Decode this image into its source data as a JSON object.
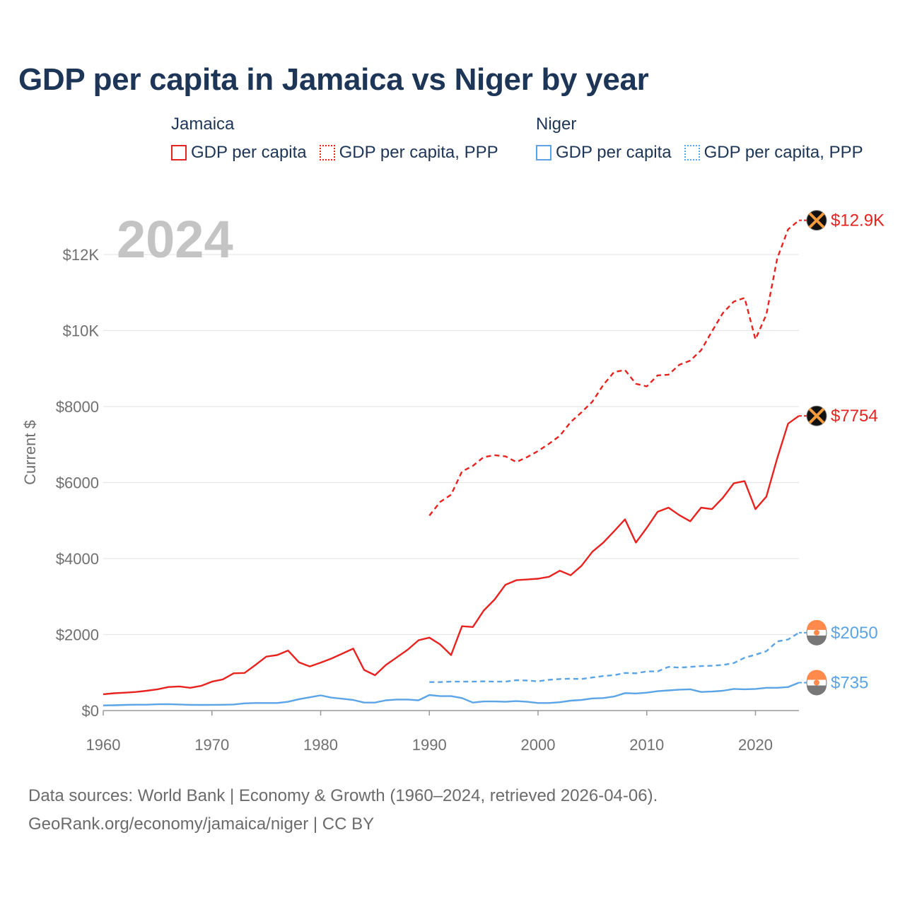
{
  "title": "GDP per capita in Jamaica vs Niger by year",
  "legend": {
    "groups": [
      {
        "name": "Jamaica",
        "color": "#e8231f",
        "items": [
          {
            "label": "GDP per capita",
            "style": "solid"
          },
          {
            "label": "GDP per capita, PPP",
            "style": "dotted"
          }
        ]
      },
      {
        "name": "Niger",
        "color": "#5ba4e6",
        "items": [
          {
            "label": "GDP per capita",
            "style": "solid"
          },
          {
            "label": "GDP per capita, PPP",
            "style": "dotted"
          }
        ]
      }
    ]
  },
  "current_year": "2024",
  "footer": {
    "line1": "Data sources: World Bank | Economy & Growth (1960–2024, retrieved 2026-04-06).",
    "line2": "GeoRank.org/economy/jamaica/niger | CC BY"
  },
  "chart_data": {
    "type": "line",
    "title": "GDP per capita in Jamaica vs Niger by year",
    "xlabel": "",
    "ylabel": "Current $",
    "xlim": [
      1960,
      2025
    ],
    "ylim": [
      0,
      13000
    ],
    "x_ticks": [
      1960,
      1970,
      1980,
      1990,
      2000,
      2010,
      2020
    ],
    "x_tick_labels": [
      "1960",
      "1970",
      "1980",
      "1990",
      "2000",
      "2010",
      "2020"
    ],
    "y_ticks": [
      0,
      2000,
      4000,
      6000,
      8000,
      10000,
      12000
    ],
    "y_tick_labels": [
      "$0",
      "$2000",
      "$4000",
      "$6000",
      "$8000",
      "$10K",
      "$12K"
    ],
    "grid": true,
    "series": [
      {
        "name": "Jamaica GDP per capita",
        "color": "#e8231f",
        "style": "solid",
        "end_label": "$7754",
        "x": [
          1960,
          1961,
          1962,
          1963,
          1964,
          1965,
          1966,
          1967,
          1968,
          1969,
          1970,
          1971,
          1972,
          1973,
          1974,
          1975,
          1976,
          1977,
          1978,
          1979,
          1980,
          1981,
          1982,
          1983,
          1984,
          1985,
          1986,
          1987,
          1988,
          1989,
          1990,
          1991,
          1992,
          1993,
          1994,
          1995,
          1996,
          1997,
          1998,
          1999,
          2000,
          2001,
          2002,
          2003,
          2004,
          2005,
          2006,
          2007,
          2008,
          2009,
          2010,
          2011,
          2012,
          2013,
          2014,
          2015,
          2016,
          2017,
          2018,
          2019,
          2020,
          2021,
          2022,
          2023,
          2024
        ],
        "values": [
          430,
          455,
          470,
          490,
          520,
          560,
          620,
          635,
          600,
          650,
          760,
          820,
          980,
          990,
          1200,
          1420,
          1460,
          1580,
          1270,
          1160,
          1260,
          1370,
          1500,
          1630,
          1070,
          930,
          1200,
          1400,
          1600,
          1850,
          1920,
          1740,
          1460,
          2220,
          2200,
          2630,
          2920,
          3310,
          3430,
          3450,
          3470,
          3520,
          3680,
          3560,
          3810,
          4180,
          4420,
          4720,
          5030,
          4420,
          4810,
          5230,
          5340,
          5140,
          4980,
          5340,
          5300,
          5600,
          5980,
          6040,
          5300,
          5630,
          6640,
          7550,
          7754
        ]
      },
      {
        "name": "Jamaica GDP per capita, PPP",
        "color": "#e8231f",
        "style": "dashed",
        "end_label": "$12.9K",
        "x": [
          1990,
          1991,
          1992,
          1993,
          1994,
          1995,
          1996,
          1997,
          1998,
          1999,
          2000,
          2001,
          2002,
          2003,
          2004,
          2005,
          2006,
          2007,
          2008,
          2009,
          2010,
          2011,
          2012,
          2013,
          2014,
          2015,
          2016,
          2017,
          2018,
          2019,
          2020,
          2021,
          2022,
          2023,
          2024
        ],
        "values": [
          5130,
          5490,
          5680,
          6290,
          6440,
          6670,
          6720,
          6690,
          6540,
          6670,
          6830,
          7020,
          7230,
          7590,
          7850,
          8130,
          8570,
          8910,
          8960,
          8600,
          8530,
          8820,
          8840,
          9100,
          9210,
          9480,
          9980,
          10460,
          10760,
          10860,
          9770,
          10420,
          11900,
          12660,
          12900
        ]
      },
      {
        "name": "Niger GDP per capita",
        "color": "#5ba4e6",
        "style": "solid",
        "end_label": "$735",
        "x": [
          1960,
          1961,
          1962,
          1963,
          1964,
          1965,
          1966,
          1967,
          1968,
          1969,
          1970,
          1971,
          1972,
          1973,
          1974,
          1975,
          1976,
          1977,
          1978,
          1979,
          1980,
          1981,
          1982,
          1983,
          1984,
          1985,
          1986,
          1987,
          1988,
          1989,
          1990,
          1991,
          1992,
          1993,
          1994,
          1995,
          1996,
          1997,
          1998,
          1999,
          2000,
          2001,
          2002,
          2003,
          2004,
          2005,
          2006,
          2007,
          2008,
          2009,
          2010,
          2011,
          2012,
          2013,
          2014,
          2015,
          2016,
          2017,
          2018,
          2019,
          2020,
          2021,
          2022,
          2023,
          2024
        ],
        "values": [
          135,
          140,
          148,
          155,
          155,
          165,
          170,
          160,
          150,
          148,
          150,
          153,
          160,
          190,
          200,
          200,
          200,
          230,
          300,
          350,
          400,
          340,
          310,
          280,
          210,
          210,
          270,
          290,
          290,
          270,
          410,
          380,
          380,
          330,
          210,
          240,
          240,
          230,
          250,
          230,
          200,
          200,
          220,
          260,
          280,
          320,
          330,
          370,
          460,
          450,
          470,
          510,
          530,
          550,
          560,
          490,
          500,
          520,
          570,
          560,
          570,
          600,
          600,
          620,
          735
        ]
      },
      {
        "name": "Niger GDP per capita, PPP",
        "color": "#5ba4e6",
        "style": "dashed",
        "end_label": "$2050",
        "x": [
          1990,
          1991,
          1992,
          1993,
          1994,
          1995,
          1996,
          1997,
          1998,
          1999,
          2000,
          2001,
          2002,
          2003,
          2004,
          2005,
          2006,
          2007,
          2008,
          2009,
          2010,
          2011,
          2012,
          2013,
          2014,
          2015,
          2016,
          2017,
          2018,
          2019,
          2020,
          2021,
          2022,
          2023,
          2024
        ],
        "values": [
          750,
          750,
          760,
          760,
          760,
          770,
          760,
          760,
          800,
          790,
          770,
          810,
          830,
          840,
          830,
          870,
          910,
          930,
          990,
          980,
          1030,
          1030,
          1150,
          1130,
          1150,
          1170,
          1180,
          1200,
          1250,
          1390,
          1470,
          1560,
          1820,
          1870,
          2050
        ]
      }
    ]
  }
}
